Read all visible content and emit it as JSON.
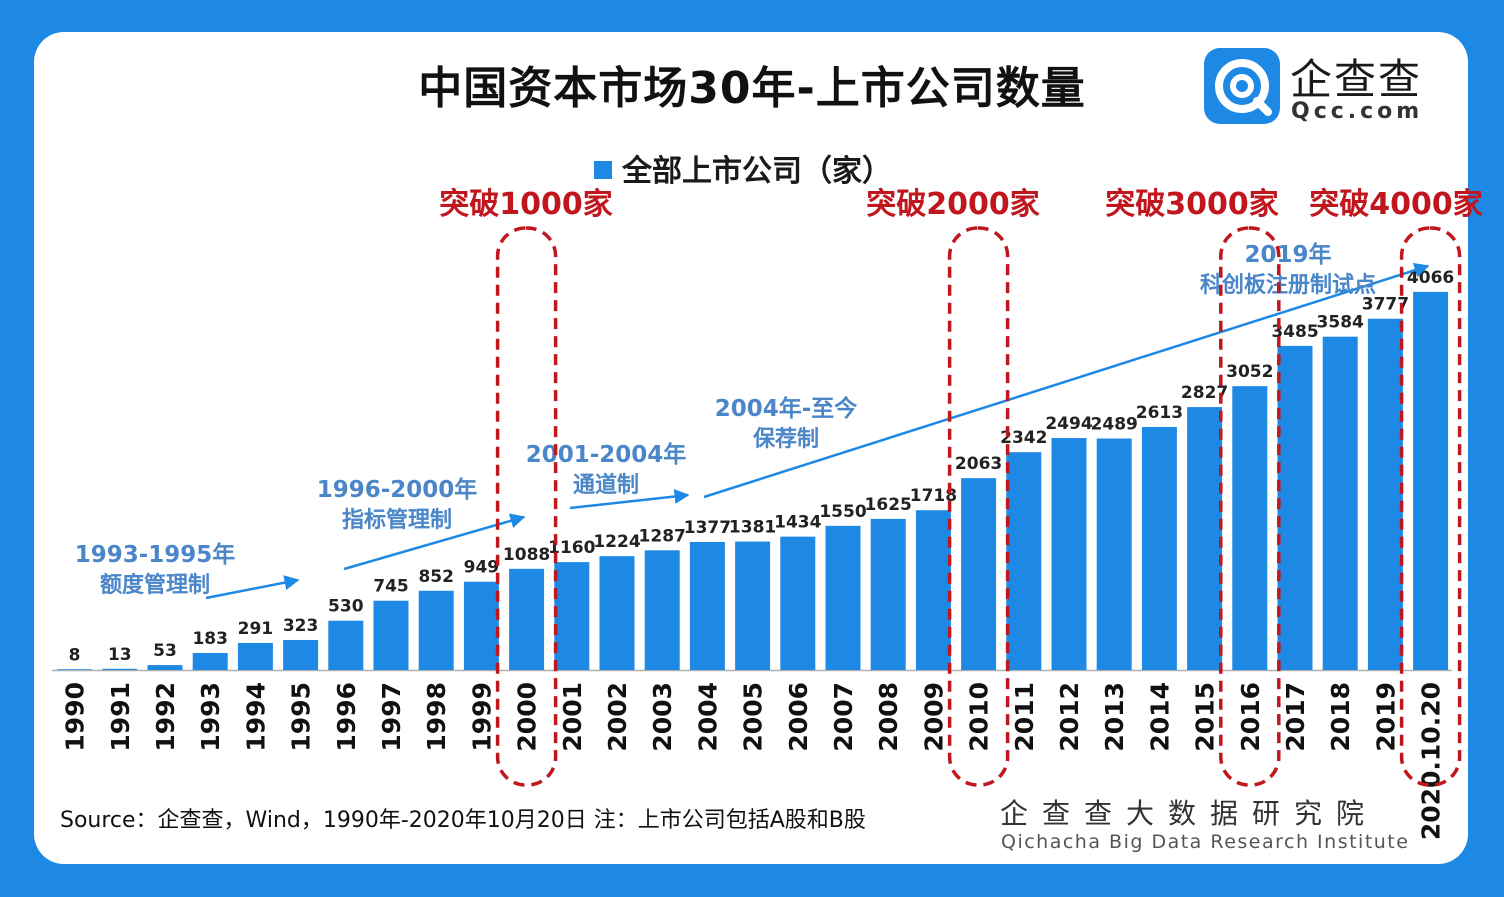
{
  "title": "中国资本市场30年-上市公司数量",
  "brand": {
    "name": "企查查",
    "url": "Qcc.com",
    "color": "#1e88e5"
  },
  "chart_data": {
    "type": "bar",
    "title": "中国资本市场30年-上市公司数量",
    "legend": "全部上市公司（家）",
    "legend_position": "top",
    "bar_color": "#1e88e5",
    "categories": [
      "1990",
      "1991",
      "1992",
      "1993",
      "1994",
      "1995",
      "1996",
      "1997",
      "1998",
      "1999",
      "2000",
      "2001",
      "2002",
      "2003",
      "2004",
      "2005",
      "2006",
      "2007",
      "2008",
      "2009",
      "2010",
      "2011",
      "2012",
      "2013",
      "2014",
      "2015",
      "2016",
      "2017",
      "2018",
      "2019",
      "2020.10.20"
    ],
    "values": [
      8,
      13,
      53,
      183,
      291,
      323,
      530,
      745,
      852,
      949,
      1088,
      1160,
      1224,
      1287,
      1377,
      1381,
      1434,
      1550,
      1625,
      1718,
      2063,
      2342,
      2494,
      2489,
      2613,
      2827,
      3052,
      3485,
      3584,
      3777,
      4066
    ],
    "ylim": [
      0,
      5000
    ],
    "grid": false,
    "milestones": [
      {
        "label": "突破1000家",
        "category": "2000"
      },
      {
        "label": "突破2000家",
        "category": "2010"
      },
      {
        "label": "突破3000家",
        "category": "2016"
      },
      {
        "label": "突破4000家",
        "category": "2020.10.20"
      }
    ],
    "milestone_color": "#c0161d",
    "phases": [
      {
        "line1": "1993-1995年",
        "line2": "额度管理制"
      },
      {
        "line1": "1996-2000年",
        "line2": "指标管理制"
      },
      {
        "line1": "2001-2004年",
        "line2": "通道制"
      },
      {
        "line1": "2004年-至今",
        "line2": "保荐制"
      },
      {
        "line1": "2019年",
        "line2": "科创板注册制试点"
      }
    ],
    "phase_color": "#4a86c8"
  },
  "footer": {
    "source": "Source：企查查，Wind，1990年-2020年10月20日   注：上市公司包括A股和B股",
    "institute_cn": "企查查大数据研究院",
    "institute_en": "Qichacha Big Data Research Institute"
  }
}
